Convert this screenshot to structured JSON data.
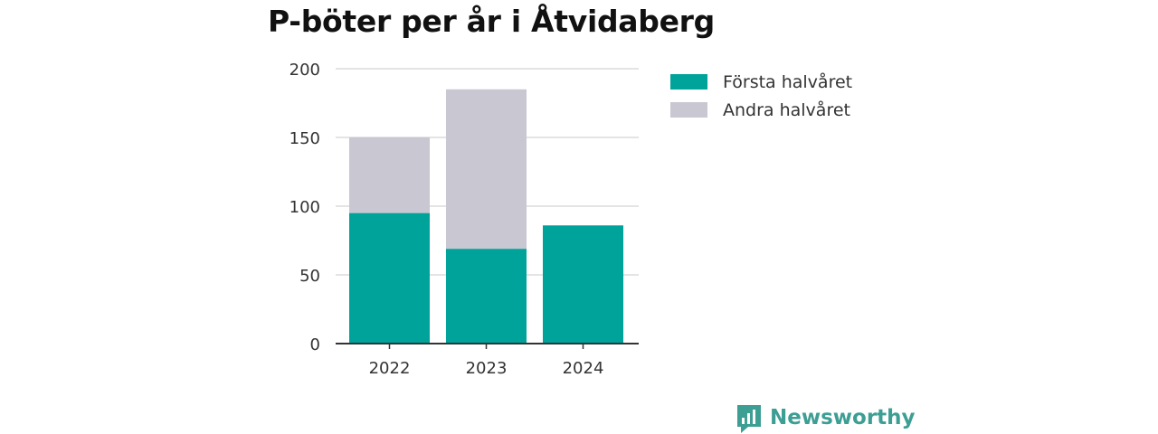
{
  "chart_data": {
    "type": "bar",
    "stacked": true,
    "title": "P-böter per år i Åtvidaberg",
    "xlabel": "",
    "ylabel": "",
    "categories": [
      "2022",
      "2023",
      "2024"
    ],
    "series": [
      {
        "name": "Första halvåret",
        "color": "#00a39a",
        "values": [
          95,
          69,
          86
        ]
      },
      {
        "name": "Andra halvåret",
        "color": "#c8c7d2",
        "values": [
          55,
          116,
          0
        ]
      }
    ],
    "ylim": [
      0,
      200
    ],
    "yticks": [
      "0",
      "50",
      "100",
      "150",
      "200"
    ],
    "grid": true,
    "legend": "right"
  },
  "brand": {
    "name": "Newsworthy",
    "icon": "newsworthy-logo-icon",
    "color": "#3d9e94"
  }
}
